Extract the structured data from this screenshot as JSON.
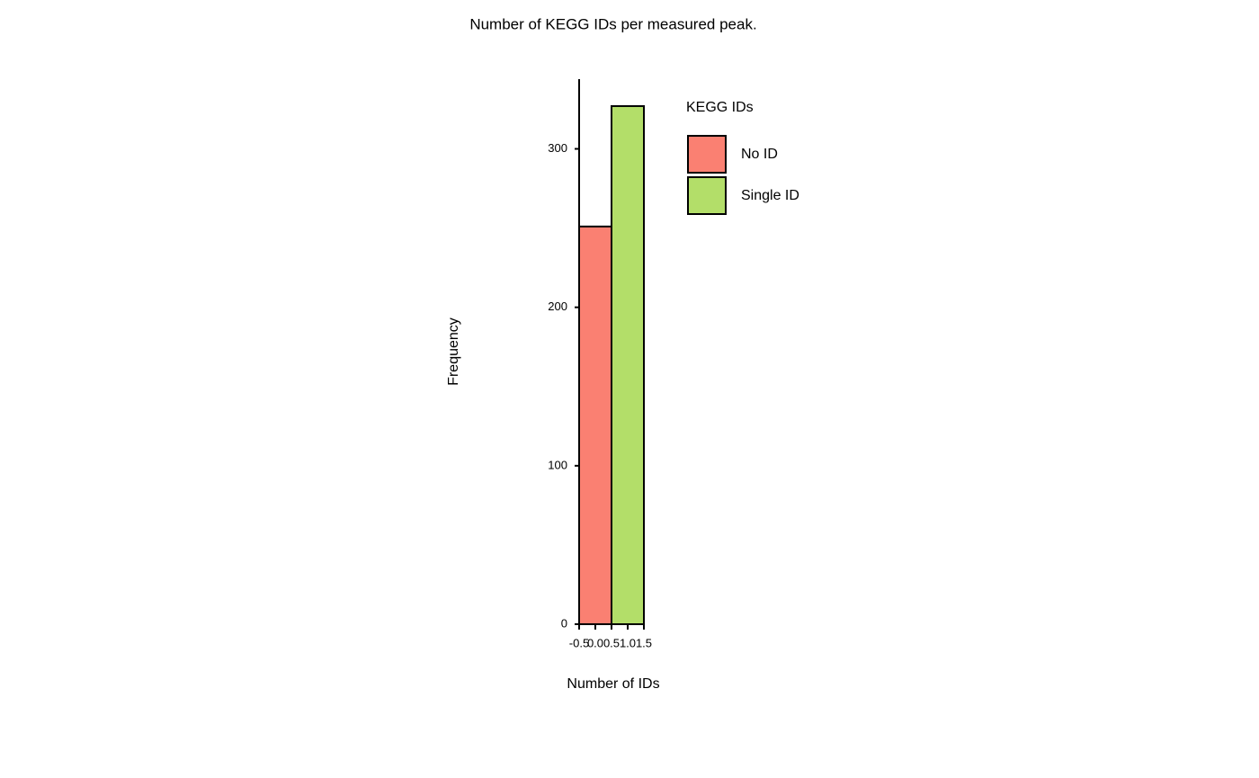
{
  "chart_data": {
    "type": "histogram",
    "title": "Number of KEGG IDs per measured peak.",
    "x_label": "Number of IDs",
    "y_label": "Frequency",
    "bins": [
      -0.5,
      0.5,
      1.5
    ],
    "series": [
      {
        "name": "No ID",
        "color": "#FA8072",
        "values": [
          251,
          null
        ]
      },
      {
        "name": "Single ID",
        "color": "#B3DE69",
        "values": [
          null,
          327
        ]
      }
    ],
    "legend_title": "KEGG IDs",
    "legend": "right",
    "xlim": [
      -0.5,
      1.5
    ],
    "xticks": [
      -0.5,
      {
        "value": 0,
        "label": "0.0"
      },
      0.5,
      {
        "value": 1,
        "label": "1.0"
      },
      1.5
    ],
    "ylim": [
      0,
      344
    ],
    "yticks": [
      0,
      100,
      200,
      300
    ],
    "grid": false
  }
}
